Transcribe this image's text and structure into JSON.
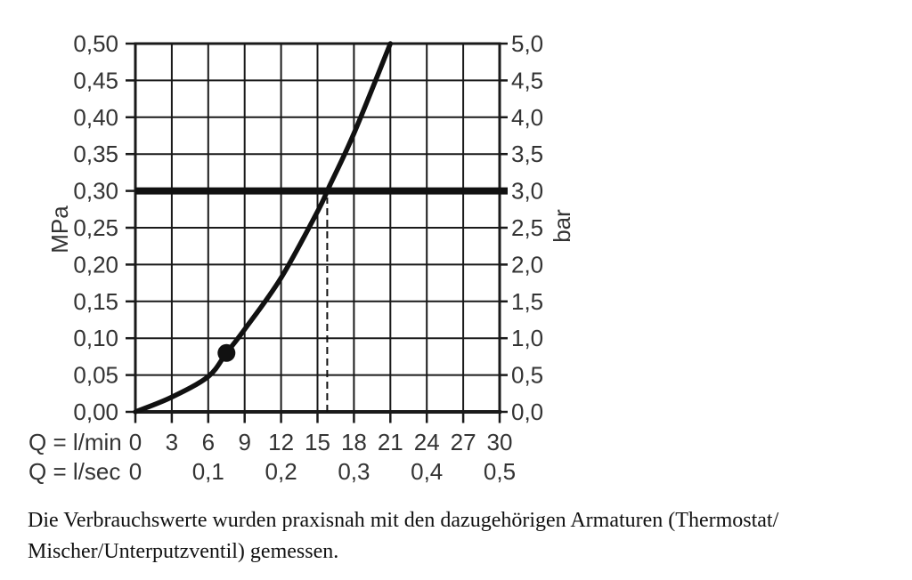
{
  "chart_data": {
    "type": "line",
    "title": "",
    "grid": true,
    "legend": false,
    "x_axis": {
      "range": [
        0,
        30
      ],
      "row_primary": {
        "label": "Q = l/min",
        "ticks": [
          {
            "v": 0,
            "t": "0"
          },
          {
            "v": 3,
            "t": "3"
          },
          {
            "v": 6,
            "t": "6"
          },
          {
            "v": 9,
            "t": "9"
          },
          {
            "v": 12,
            "t": "12"
          },
          {
            "v": 15,
            "t": "15"
          },
          {
            "v": 18,
            "t": "18"
          },
          {
            "v": 21,
            "t": "21"
          },
          {
            "v": 24,
            "t": "24"
          },
          {
            "v": 27,
            "t": "27"
          },
          {
            "v": 30,
            "t": "30"
          }
        ]
      },
      "row_secondary": {
        "label": "Q = l/sec",
        "ticks": [
          {
            "v": 0,
            "t": "0"
          },
          {
            "v": 6,
            "t": "0,1"
          },
          {
            "v": 12,
            "t": "0,2"
          },
          {
            "v": 18,
            "t": "0,3"
          },
          {
            "v": 24,
            "t": "0,4"
          },
          {
            "v": 30,
            "t": "0,5"
          }
        ]
      }
    },
    "y_axis_left": {
      "label": "MPa",
      "range": [
        0,
        0.5
      ],
      "ticks": [
        {
          "v": 0.0,
          "t": "0,00"
        },
        {
          "v": 0.05,
          "t": "0,05"
        },
        {
          "v": 0.1,
          "t": "0,10"
        },
        {
          "v": 0.15,
          "t": "0,15"
        },
        {
          "v": 0.2,
          "t": "0,20"
        },
        {
          "v": 0.25,
          "t": "0,25"
        },
        {
          "v": 0.3,
          "t": "0,30"
        },
        {
          "v": 0.35,
          "t": "0,35"
        },
        {
          "v": 0.4,
          "t": "0,40"
        },
        {
          "v": 0.45,
          "t": "0,45"
        },
        {
          "v": 0.5,
          "t": "0,50"
        }
      ]
    },
    "y_axis_right": {
      "label": "bar",
      "range": [
        0,
        5
      ],
      "ticks": [
        {
          "v": 0.0,
          "t": "0,0"
        },
        {
          "v": 0.5,
          "t": "0,5"
        },
        {
          "v": 1.0,
          "t": "1,0"
        },
        {
          "v": 1.5,
          "t": "1,5"
        },
        {
          "v": 2.0,
          "t": "2,0"
        },
        {
          "v": 2.5,
          "t": "2,5"
        },
        {
          "v": 3.0,
          "t": "3,0"
        },
        {
          "v": 3.5,
          "t": "3,5"
        },
        {
          "v": 4.0,
          "t": "4,0"
        },
        {
          "v": 4.5,
          "t": "4,5"
        },
        {
          "v": 5.0,
          "t": "5,0"
        }
      ]
    },
    "series": [
      {
        "name": "flow-pressure-curve",
        "points_q_lmin_p_mpa": [
          [
            0,
            0
          ],
          [
            3,
            0.02
          ],
          [
            6,
            0.048
          ],
          [
            7.5,
            0.08
          ],
          [
            9,
            0.112
          ],
          [
            12,
            0.182
          ],
          [
            15,
            0.272
          ],
          [
            16,
            0.307
          ],
          [
            18,
            0.378
          ],
          [
            21,
            0.5
          ]
        ]
      }
    ],
    "reference_line": {
      "p_mpa": 0.3,
      "p_bar": 3.0
    },
    "dashed_guide": {
      "q_lmin": 15.8,
      "top_p_mpa": 0.291
    },
    "marker_dot": {
      "q_lmin": 7.5,
      "p_mpa": 0.08
    },
    "colors": {
      "ink": "#111111",
      "grid": "#1a1a1a",
      "text": "#333333",
      "background": "#ffffff"
    }
  },
  "caption": {
    "lines": [
      "Die Verbrauchswerte wurden praxisnah mit den dazugehörigen Armaturen (Thermostat/",
      "Mischer/Unterputzventil) gemessen."
    ]
  }
}
